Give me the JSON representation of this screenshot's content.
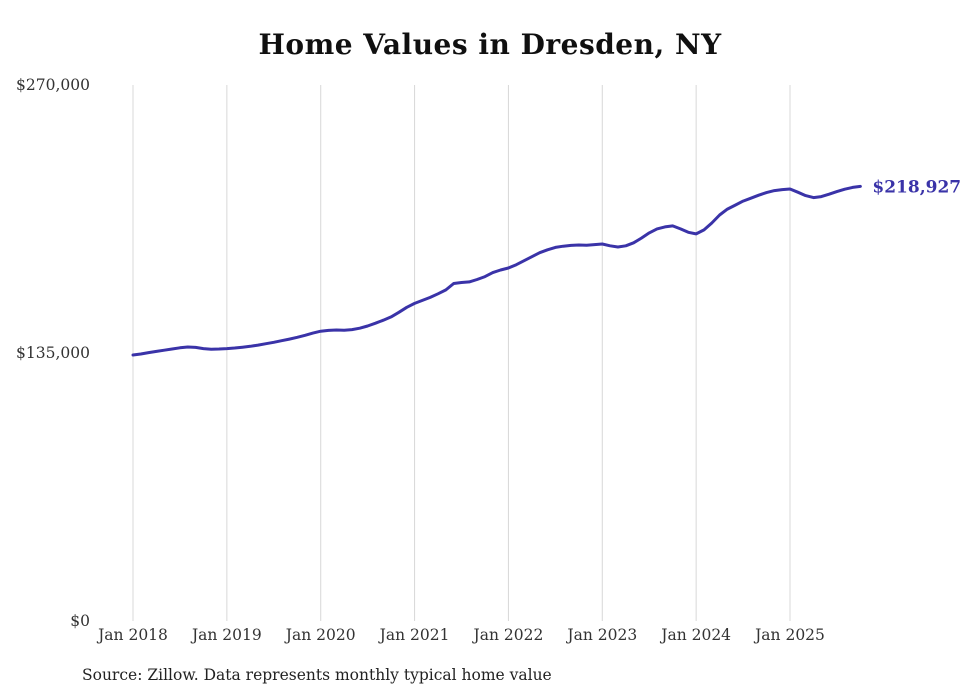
{
  "chart_data": {
    "type": "line",
    "title": "Home Values in Dresden, NY",
    "source": "Source: Zillow. Data represents monthly typical home value",
    "xlabel": "",
    "ylabel": "",
    "ylim": [
      0,
      270000
    ],
    "grid": "vertical-only",
    "legend": "none",
    "line_color": "#3a33a8",
    "grid_color": "#d8d8d8",
    "end_label": "$218,927",
    "last_value": 218927,
    "x_tick_labels": [
      "Jan 2018",
      "Jan 2019",
      "Jan 2020",
      "Jan 2021",
      "Jan 2022",
      "Jan 2023",
      "Jan 2024",
      "Jan 2025"
    ],
    "y_ticks": [
      {
        "label": "$270,000",
        "value": 270000
      },
      {
        "label": "$135,000",
        "value": 135000
      },
      {
        "label": "$0",
        "value": 0
      }
    ],
    "x_start": "2018-01",
    "frequency": "monthly",
    "x": [
      "2018-01",
      "2018-02",
      "2018-03",
      "2018-04",
      "2018-05",
      "2018-06",
      "2018-07",
      "2018-08",
      "2018-09",
      "2018-10",
      "2018-11",
      "2018-12",
      "2019-01",
      "2019-02",
      "2019-03",
      "2019-04",
      "2019-05",
      "2019-06",
      "2019-07",
      "2019-08",
      "2019-09",
      "2019-10",
      "2019-11",
      "2019-12",
      "2020-01",
      "2020-02",
      "2020-03",
      "2020-04",
      "2020-05",
      "2020-06",
      "2020-07",
      "2020-08",
      "2020-09",
      "2020-10",
      "2020-11",
      "2020-12",
      "2021-01",
      "2021-02",
      "2021-03",
      "2021-04",
      "2021-05",
      "2021-06",
      "2021-07",
      "2021-08",
      "2021-09",
      "2021-10",
      "2021-11",
      "2021-12",
      "2022-01",
      "2022-02",
      "2022-03",
      "2022-04",
      "2022-05",
      "2022-06",
      "2022-07",
      "2022-08",
      "2022-09",
      "2022-10",
      "2022-11",
      "2022-12",
      "2023-01",
      "2023-02",
      "2023-03",
      "2023-04",
      "2023-05",
      "2023-06",
      "2023-07",
      "2023-08",
      "2023-09",
      "2023-10",
      "2023-11",
      "2023-12",
      "2024-01",
      "2024-02",
      "2024-03",
      "2024-04",
      "2024-05",
      "2024-06",
      "2024-07",
      "2024-08",
      "2024-09",
      "2024-10",
      "2024-11",
      "2024-12",
      "2025-01",
      "2025-02",
      "2025-03",
      "2025-04",
      "2025-05",
      "2025-06",
      "2025-07",
      "2025-08",
      "2025-09",
      "2025-10"
    ],
    "series": [
      {
        "name": "Typical home value",
        "values": [
          134000,
          134500,
          135200,
          135800,
          136400,
          137000,
          137600,
          138000,
          137800,
          137200,
          136900,
          137000,
          137200,
          137500,
          137900,
          138400,
          139000,
          139700,
          140400,
          141200,
          142000,
          142900,
          143900,
          145000,
          146000,
          146400,
          146600,
          146500,
          146800,
          147500,
          148600,
          150000,
          151500,
          153200,
          155500,
          158000,
          160000,
          161500,
          163000,
          164800,
          166800,
          170000,
          170500,
          170800,
          172000,
          173500,
          175500,
          176800,
          177800,
          179500,
          181500,
          183500,
          185500,
          187000,
          188200,
          188800,
          189200,
          189400,
          189300,
          189600,
          189900,
          189000,
          188400,
          189000,
          190500,
          192900,
          195500,
          197500,
          198500,
          199000,
          197500,
          195800,
          195000,
          197000,
          200500,
          204500,
          207500,
          209500,
          211500,
          213000,
          214500,
          215800,
          216800,
          217300,
          217600,
          216000,
          214300,
          213300,
          213800,
          215000,
          216300,
          217500,
          218400,
          218927
        ]
      }
    ]
  }
}
